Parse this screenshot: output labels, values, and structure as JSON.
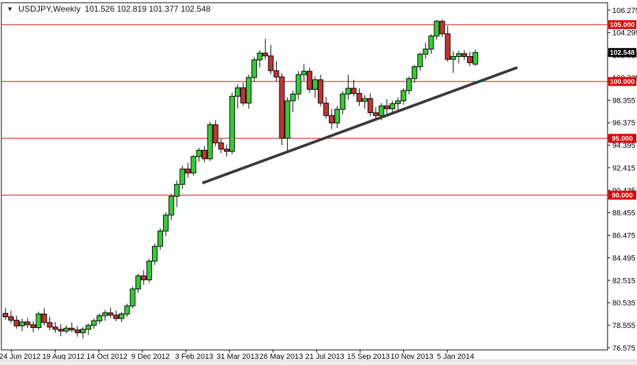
{
  "title_bar": {
    "dropdown_glyph": "▼",
    "symbol_label": "USDJPY,Weekly",
    "ohlc_label": "101.526 102.819 101.377 102.548"
  },
  "colors": {
    "bull": "#32CD32",
    "bear": "#C83232",
    "wick": "#000000",
    "candle_border": "#000000",
    "level_line": "#CC0000",
    "level_tag_bg": "#E00000",
    "current_tag_bg": "#000000",
    "tag_text": "#FFFFFF",
    "trendline": "#3A3A3A",
    "axis_text": "#000000",
    "plot_border": "#000000",
    "background": "#FFFFFF"
  },
  "chart_data": {
    "type": "candlestick",
    "title": "USDJPY,Weekly",
    "symbol": "USDJPY",
    "timeframe": "Weekly",
    "current_bar": {
      "open": 101.526,
      "high": 102.819,
      "low": 101.377,
      "close": 102.548
    },
    "y_axis": {
      "tick_labels": [
        106.275,
        104.295,
        102.315,
        100.335,
        98.355,
        96.375,
        94.395,
        92.415,
        90.435,
        88.455,
        86.475,
        84.495,
        82.515,
        80.535,
        78.555,
        76.575
      ],
      "step": 1.98,
      "side": "right"
    },
    "x_axis": {
      "tick_labels": [
        "24 Jun 2012",
        "19 Aug 2012",
        "14 Oct 2012",
        "9 Dec 2012",
        "3 Feb 2013",
        "31 Mar 2013",
        "26 May 2013",
        "21 Jul 2013",
        "15 Sep 2013",
        "10 Nov 2013",
        "5 Jan 2014"
      ]
    },
    "horizontal_levels": [
      {
        "price": 105.0,
        "tag": "105.000"
      },
      {
        "price": 100.0,
        "tag": "100.000"
      },
      {
        "price": 95.0,
        "tag": "95.000"
      },
      {
        "price": 90.0,
        "tag": "90.000"
      }
    ],
    "current_price_tag": {
      "label": "102.548",
      "price": 102.548
    },
    "trendline": {
      "from_bar": 35.8,
      "from_price": 91.1,
      "to_bar": 92.4,
      "to_price": 101.2
    },
    "grid": false,
    "legend": false,
    "candles_ohlc": [
      [
        79.6,
        80.1,
        79.05,
        79.3
      ],
      [
        79.3,
        79.85,
        78.75,
        79.0
      ],
      [
        79.0,
        79.4,
        78.25,
        78.5
      ],
      [
        78.5,
        79.15,
        78.05,
        78.85
      ],
      [
        78.85,
        79.2,
        78.3,
        78.6
      ],
      [
        78.6,
        78.9,
        77.95,
        78.35
      ],
      [
        78.35,
        79.75,
        78.15,
        79.55
      ],
      [
        79.55,
        80.05,
        78.55,
        78.8
      ],
      [
        78.8,
        79.3,
        78.1,
        78.4
      ],
      [
        78.4,
        78.85,
        77.9,
        78.2
      ],
      [
        78.2,
        78.65,
        77.6,
        78.05
      ],
      [
        78.05,
        78.55,
        77.85,
        78.3
      ],
      [
        78.3,
        78.8,
        77.95,
        78.15
      ],
      [
        78.15,
        78.5,
        77.55,
        77.9
      ],
      [
        77.9,
        78.4,
        77.4,
        78.2
      ],
      [
        78.2,
        78.7,
        77.7,
        78.55
      ],
      [
        78.55,
        79.15,
        78.25,
        78.95
      ],
      [
        78.95,
        79.6,
        78.7,
        79.4
      ],
      [
        79.4,
        79.9,
        78.95,
        79.65
      ],
      [
        79.65,
        80.1,
        79.2,
        79.45
      ],
      [
        79.45,
        79.85,
        78.9,
        79.15
      ],
      [
        79.15,
        79.7,
        78.85,
        79.55
      ],
      [
        79.55,
        80.45,
        79.3,
        80.25
      ],
      [
        80.25,
        81.95,
        80.05,
        81.75
      ],
      [
        81.75,
        83.1,
        81.4,
        82.9
      ],
      [
        82.9,
        83.4,
        82.1,
        82.55
      ],
      [
        82.55,
        84.4,
        82.3,
        84.2
      ],
      [
        84.2,
        85.75,
        83.85,
        85.5
      ],
      [
        85.5,
        87.1,
        85.2,
        86.85
      ],
      [
        86.85,
        88.5,
        86.4,
        88.25
      ],
      [
        88.25,
        90.1,
        87.8,
        89.9
      ],
      [
        89.9,
        91.3,
        88.95,
        90.95
      ],
      [
        90.95,
        92.6,
        90.55,
        92.3
      ],
      [
        92.3,
        92.85,
        91.55,
        91.95
      ],
      [
        91.95,
        93.55,
        91.7,
        93.4
      ],
      [
        93.4,
        94.15,
        92.95,
        93.95
      ],
      [
        93.95,
        94.3,
        92.9,
        93.2
      ],
      [
        93.2,
        96.45,
        93.0,
        96.2
      ],
      [
        96.2,
        96.6,
        94.3,
        94.6
      ],
      [
        94.6,
        94.95,
        93.7,
        94.05
      ],
      [
        94.05,
        94.45,
        93.4,
        93.85
      ],
      [
        93.85,
        99.0,
        93.6,
        98.7
      ],
      [
        98.7,
        99.75,
        97.6,
        99.45
      ],
      [
        99.45,
        99.9,
        97.85,
        98.1
      ],
      [
        98.1,
        100.6,
        97.6,
        100.35
      ],
      [
        100.35,
        102.15,
        99.95,
        101.9
      ],
      [
        101.9,
        102.75,
        101.25,
        102.5
      ],
      [
        102.5,
        103.74,
        101.95,
        102.25
      ],
      [
        102.25,
        103.2,
        100.65,
        100.95
      ],
      [
        100.95,
        101.8,
        100.0,
        100.4
      ],
      [
        100.4,
        100.7,
        94.4,
        95.0
      ],
      [
        95.0,
        98.6,
        93.75,
        98.3
      ],
      [
        98.3,
        99.2,
        97.3,
        98.9
      ],
      [
        98.9,
        100.9,
        98.4,
        100.6
      ],
      [
        100.6,
        101.55,
        100.05,
        100.9
      ],
      [
        100.9,
        101.2,
        99.0,
        99.3
      ],
      [
        99.3,
        100.45,
        98.55,
        100.15
      ],
      [
        100.15,
        100.6,
        97.8,
        98.1
      ],
      [
        98.1,
        98.65,
        96.75,
        97.0
      ],
      [
        97.0,
        97.6,
        95.81,
        96.35
      ],
      [
        96.35,
        97.85,
        95.9,
        97.55
      ],
      [
        97.55,
        99.15,
        97.1,
        98.9
      ],
      [
        98.9,
        100.6,
        98.4,
        99.4
      ],
      [
        99.4,
        100.15,
        98.7,
        98.95
      ],
      [
        98.95,
        99.4,
        97.85,
        98.25
      ],
      [
        98.25,
        98.8,
        97.6,
        98.5
      ],
      [
        98.5,
        98.95,
        96.95,
        97.25
      ],
      [
        97.25,
        97.75,
        96.57,
        97.0
      ],
      [
        97.0,
        98.1,
        96.6,
        97.85
      ],
      [
        97.85,
        98.45,
        97.15,
        97.6
      ],
      [
        97.6,
        98.3,
        97.2,
        98.05
      ],
      [
        98.05,
        98.6,
        97.4,
        98.3
      ],
      [
        98.3,
        99.4,
        97.95,
        99.2
      ],
      [
        99.2,
        100.45,
        98.85,
        100.25
      ],
      [
        100.25,
        101.45,
        99.9,
        101.3
      ],
      [
        101.3,
        102.55,
        100.95,
        102.4
      ],
      [
        102.4,
        103.4,
        102.0,
        102.85
      ],
      [
        102.85,
        104.15,
        102.45,
        104.0
      ],
      [
        104.0,
        105.42,
        103.7,
        105.3
      ],
      [
        105.3,
        105.45,
        103.95,
        104.2
      ],
      [
        104.2,
        104.9,
        101.75,
        101.95
      ],
      [
        101.95,
        102.65,
        100.76,
        102.2
      ],
      [
        102.2,
        102.7,
        101.6,
        102.45
      ],
      [
        102.45,
        102.75,
        101.9,
        102.2
      ],
      [
        102.2,
        102.6,
        101.35,
        101.65
      ],
      [
        101.526,
        102.819,
        101.377,
        102.548
      ]
    ]
  }
}
